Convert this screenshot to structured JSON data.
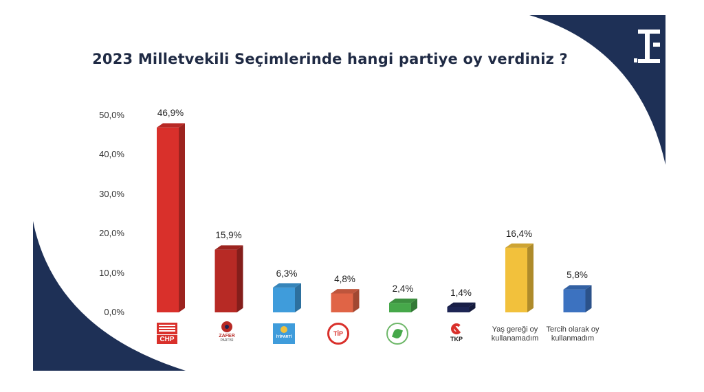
{
  "chart_data": {
    "type": "bar",
    "title": "2023 Milletvekili Seçimlerinde hangi partiye oy verdiniz ?",
    "categories": [
      "CHP",
      "ZAFER PARTİSİ",
      "İYİ PARTİ",
      "TİP",
      "YEŞİL SOL PARTİ",
      "TKP",
      "Yaş gereği oy kullanamadım",
      "Tercih olarak oy kullanmadım"
    ],
    "values": [
      46.9,
      15.9,
      6.3,
      4.8,
      2.4,
      1.4,
      16.4,
      5.8
    ],
    "value_labels": [
      "46,9%",
      "15,9%",
      "6,3%",
      "4,8%",
      "2,4%",
      "1,4%",
      "16,4%",
      "5,8%"
    ],
    "ylim": [
      0,
      50
    ],
    "yticks": [
      "0,0%",
      "10,0%",
      "20,0%",
      "30,0%",
      "40,0%",
      "50,0%"
    ],
    "grid": false,
    "bar_colors": [
      "#d9302b",
      "#b72a25",
      "#3f9cdb",
      "#e06446",
      "#46a84a",
      "#1d2554",
      "#f2c13c",
      "#3c72c0"
    ],
    "legend": "none"
  },
  "category_text": {
    "chp": "CHP",
    "zafer": "ZAFER",
    "zafer_sub": "PARTİSİ",
    "iyi": "İYİPARTİ",
    "tip": "TİP",
    "tkp": "TKP",
    "yas_line1": "Yaş gereği oy",
    "yas_line2": "kullanamadım",
    "tercih_line1": "Tercih olarak oy",
    "tercih_line2": "kullanmadım"
  },
  "colors": {
    "navy": "#1e3056",
    "title": "#1f2a44"
  }
}
